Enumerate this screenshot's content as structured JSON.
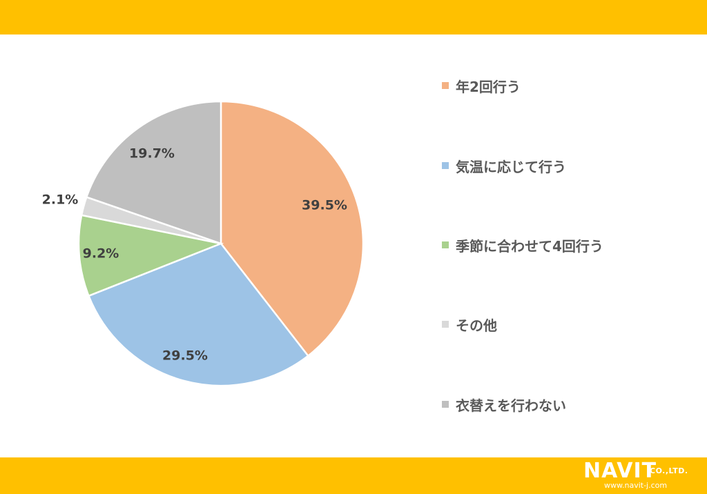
{
  "theme": {
    "band_color": "#FFC000"
  },
  "chart_data": {
    "type": "pie",
    "categories": [
      "年2回行う",
      "気温に応じて行う",
      "季節に合わせて4回行う",
      "その他",
      "衣替えを行わない"
    ],
    "values": [
      39.5,
      29.5,
      9.2,
      2.1,
      19.7
    ],
    "labels": [
      "39.5%",
      "29.5%",
      "9.2%",
      "2.1%",
      "19.7%"
    ],
    "colors": [
      "#F4B183",
      "#9DC3E6",
      "#A9D18E",
      "#D9D9D9",
      "#BFBFBF"
    ],
    "start_angle": "12 o'clock",
    "direction": "clockwise",
    "legend_position": "right"
  },
  "logo": {
    "brand": "NAVIT",
    "suffix": "CO.,LTD.",
    "url": "www.navit-j.com"
  }
}
